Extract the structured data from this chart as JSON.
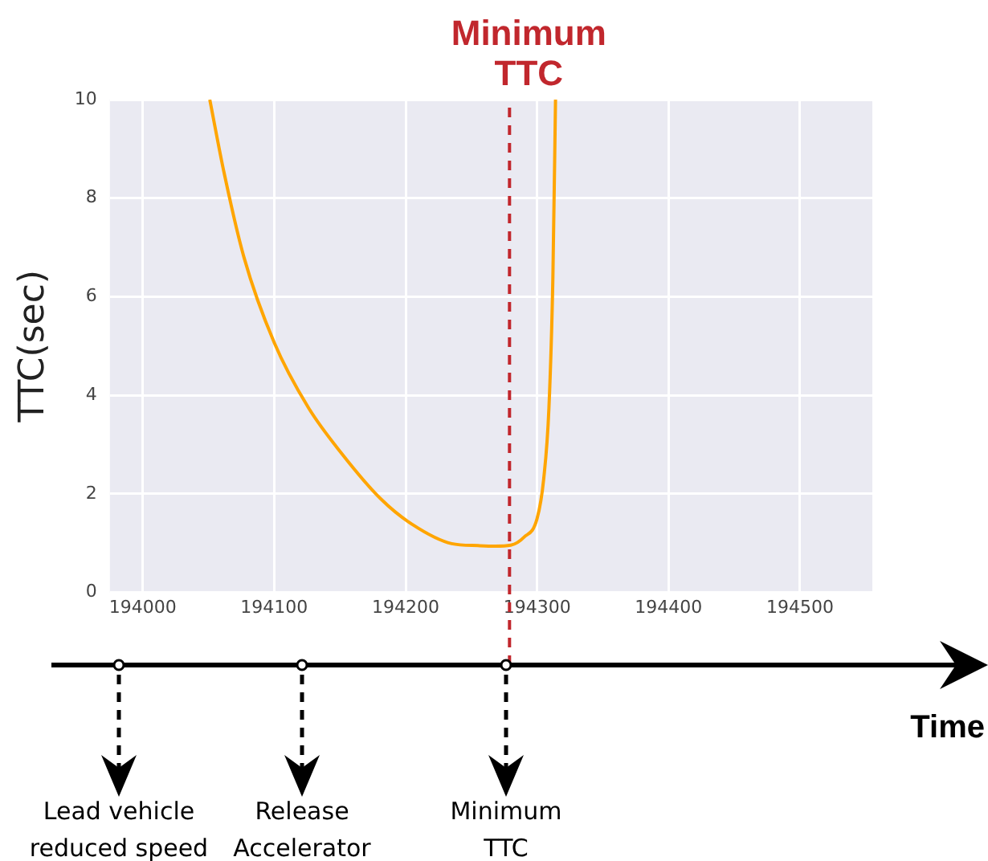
{
  "chart_data": {
    "type": "line",
    "ylabel": "TTC(sec)",
    "x": [
      194051,
      194062,
      194077,
      194100,
      194126,
      194151,
      194181,
      194205,
      194235,
      194255,
      194268,
      194280,
      194290,
      194300,
      194305,
      194309,
      194312,
      194314
    ],
    "series": [
      {
        "color": "#ffa500",
        "values": [
          10,
          8.5,
          6.8,
          5.07,
          3.75,
          2.83,
          1.9,
          1.38,
          0.99,
          0.95,
          0.94,
          0.96,
          1.12,
          1.5,
          2.3,
          3.75,
          6.4,
          10
        ]
      }
    ],
    "xlim": [
      193975,
      194555
    ],
    "ylim": [
      0,
      10
    ],
    "xticks": [
      194000,
      194100,
      194200,
      194300,
      194400,
      194500
    ],
    "yticks": [
      0,
      2,
      4,
      6,
      8,
      10
    ],
    "grid": true,
    "legend": false,
    "marker": "none",
    "line_style": "solid",
    "ref_lines": [
      {
        "axis": "x",
        "value": 194279,
        "label": "Minimum\nTTC",
        "color": "#c1272d",
        "line_style": "dashed"
      }
    ],
    "annotations": [
      "Lead vehicle\nreduced speed",
      "Release\nAccelerator",
      "Minimum\nTTC",
      "Time"
    ]
  }
}
